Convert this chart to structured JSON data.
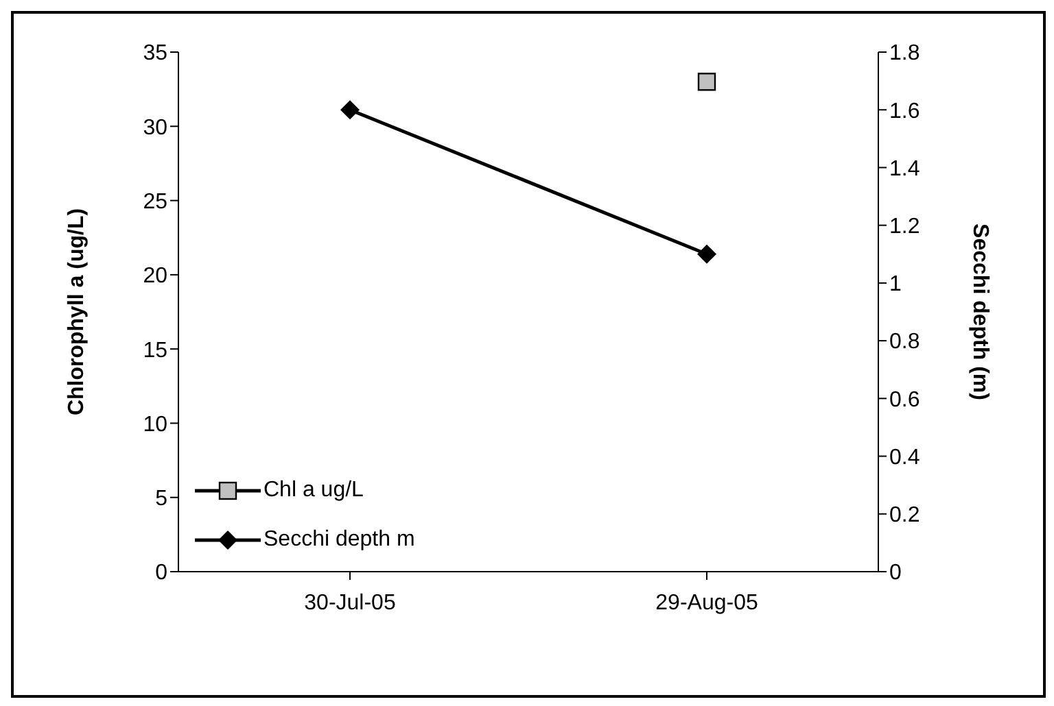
{
  "chart_data": {
    "type": "line",
    "categories": [
      "30-Jul-05",
      "29-Aug-05"
    ],
    "series": [
      {
        "name": "Chl a ug/L",
        "color": "#c0c0c0",
        "values": [
          null,
          33
        ],
        "marker": "square"
      },
      {
        "name": "Secchi depth m",
        "color": "#000000",
        "values": [
          1.6,
          1.1
        ],
        "marker": "diamond",
        "axis": "y2"
      }
    ],
    "ylabel": "Chlorophyll a (ug/L)",
    "y2label": "Secchi depth (m)",
    "ylim": [
      0,
      35
    ],
    "yticks": [
      0,
      5,
      10,
      15,
      20,
      25,
      30,
      35
    ],
    "y2lim": [
      0,
      1.8
    ],
    "y2ticks": [
      0,
      0.2,
      0.4,
      0.6,
      0.8,
      1,
      1.2,
      1.4,
      1.6,
      1.8
    ],
    "legend": "bottom left",
    "grid": false
  }
}
